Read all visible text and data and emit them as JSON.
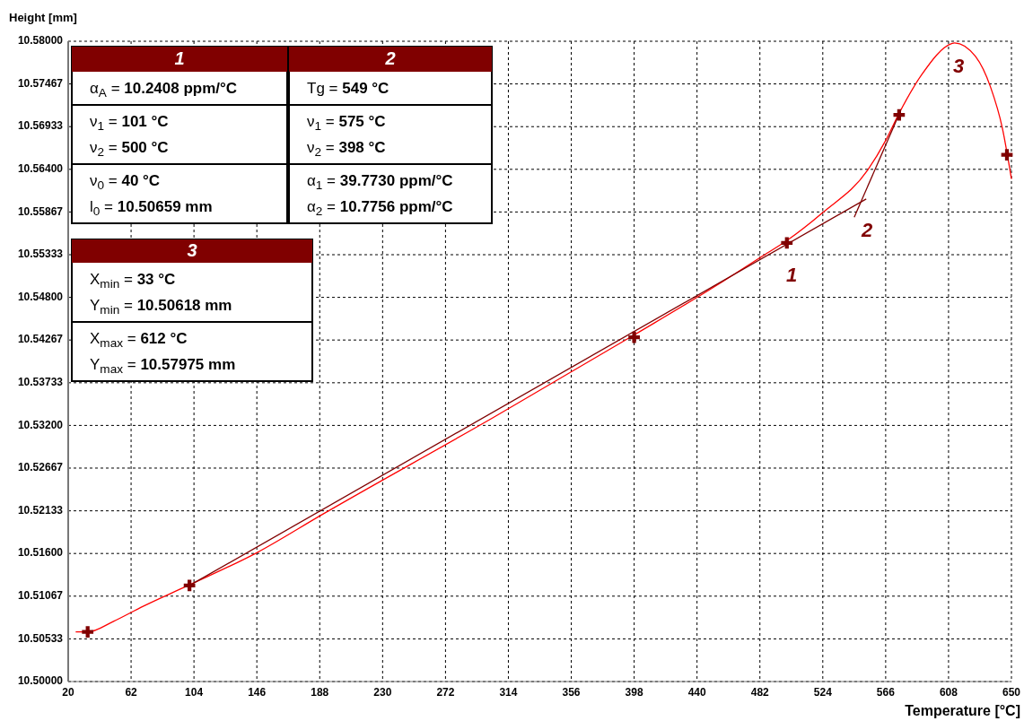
{
  "chart_data": {
    "type": "line",
    "xlabel": "Temperature [°C]",
    "ylabel": "Height [mm]",
    "xlim": [
      20,
      650
    ],
    "xticks": [
      20,
      62,
      104,
      146,
      188,
      230,
      272,
      314,
      356,
      398,
      440,
      482,
      524,
      566,
      608,
      650
    ],
    "ylim": [
      10.5,
      10.58
    ],
    "yticks": [
      {
        "value": 10.5,
        "label": "10.50000"
      },
      {
        "value": 10.50533,
        "label": "10.50533"
      },
      {
        "value": 10.51067,
        "label": "10.51067"
      },
      {
        "value": 10.516,
        "label": "10.51600"
      },
      {
        "value": 10.52133,
        "label": "10.52133"
      },
      {
        "value": 10.52667,
        "label": "10.52667"
      },
      {
        "value": 10.532,
        "label": "10.53200"
      },
      {
        "value": 10.53733,
        "label": "10.53733"
      },
      {
        "value": 10.54267,
        "label": "10.54267"
      },
      {
        "value": 10.548,
        "label": "10.54800"
      },
      {
        "value": 10.55333,
        "label": "10.55333"
      },
      {
        "value": 10.55867,
        "label": "10.55867"
      },
      {
        "value": 10.564,
        "label": "10.56400"
      },
      {
        "value": 10.56933,
        "label": "10.56933"
      },
      {
        "value": 10.57467,
        "label": "10.57467"
      },
      {
        "value": 10.58,
        "label": "10.58000"
      }
    ],
    "grid": true,
    "series": [
      {
        "color": "#ff0000",
        "x": [
          25,
          33,
          50,
          70,
          100,
          146,
          189,
          304,
          398,
          454,
          484,
          500,
          524,
          554,
          566,
          575,
          590,
          610,
          612,
          626,
          636,
          644,
          650
        ],
        "values": [
          10.5062,
          10.5062,
          10.5075,
          10.5094,
          10.512,
          10.5161,
          10.5208,
          10.533,
          10.5433,
          10.5496,
          10.5532,
          10.5551,
          10.5586,
          10.5639,
          10.5676,
          10.571,
          10.5758,
          10.5797,
          10.5798,
          10.5781,
          10.5743,
          10.5691,
          10.5628
        ]
      },
      {
        "type": "line",
        "color": "#800000",
        "x": [
          101,
          553
        ],
        "values": [
          10.512,
          10.5603
        ]
      },
      {
        "type": "line",
        "color": "#800000",
        "x": [
          545,
          575
        ],
        "values": [
          10.558,
          10.5709
        ]
      },
      {
        "type": "scatter",
        "color": "#800000",
        "marker": "cross",
        "x": [
          33,
          101,
          398,
          500,
          575,
          647
        ],
        "values": [
          10.5062,
          10.512,
          10.543,
          10.5548,
          10.5708,
          10.5658
        ]
      }
    ],
    "annotations": [
      "1",
      "α$_{A}$ = 10.2408 ppm/°C",
      "ν$_{1}$ = 101 °C",
      "ν$_{2}$ = 500 °C",
      "ν$_{0}$ = 40 °C",
      "l$_{0}$ = 10.50659 mm",
      "2",
      "Tg = 549 °C",
      "ν$_{1}$ = 575 °C",
      "ν$_{2}$ = 398 °C",
      "α$_{1}$ = 39.7730 ppm/°C",
      "α$_{2}$ = 10.7756 ppm/°C",
      "3",
      "X$_{min}$ = 33 °C",
      "Y$_{min}$ = 10.50618 mm",
      "X$_{max}$ = 612 °C",
      "Y$_{max}$ = 10.57975 mm",
      "1",
      "2",
      "3"
    ]
  }
}
